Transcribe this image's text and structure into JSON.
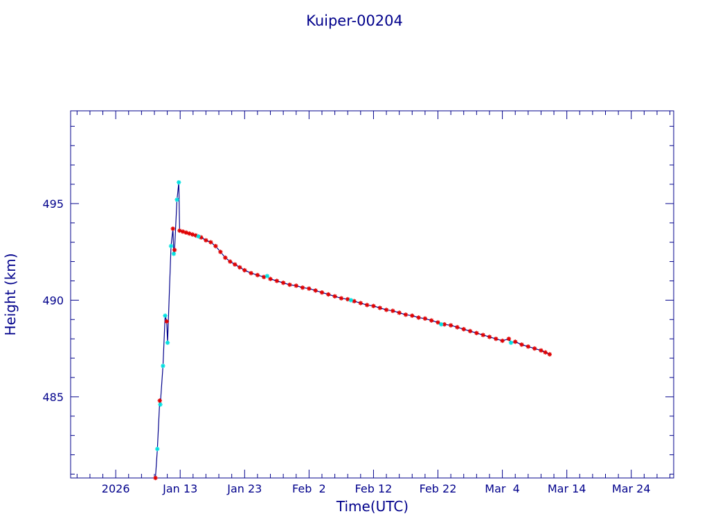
{
  "chart_data": {
    "type": "scatter",
    "title": "Kuiper-00204",
    "xlabel": "Time(UTC)",
    "ylabel": "Height (km)",
    "x_ticks": [
      {
        "date": "2026-01-03",
        "label": "2026"
      },
      {
        "date": "2026-01-13",
        "label": "Jan 13"
      },
      {
        "date": "2026-01-23",
        "label": "Jan 23"
      },
      {
        "date": "2026-02-02",
        "label": "Feb  2"
      },
      {
        "date": "2026-02-12",
        "label": "Feb 12"
      },
      {
        "date": "2026-02-22",
        "label": "Feb 22"
      },
      {
        "date": "2026-03-04",
        "label": "Mar  4"
      },
      {
        "date": "2026-03-14",
        "label": "Mar 14"
      },
      {
        "date": "2026-03-24",
        "label": "Mar 24"
      }
    ],
    "xlim": [
      "2025-12-27T00:00",
      "2026-03-30T14:00"
    ],
    "ylim": [
      480.8,
      499.8
    ],
    "y_ticks": [
      485,
      490,
      495
    ],
    "grid": false,
    "line_color": "#00008b",
    "series": [
      {
        "color": "#e00000",
        "marker": "asterisk",
        "points": [
          [
            "2026-01-09T04:00",
            480.8
          ],
          [
            "2026-01-09T20:00",
            484.8
          ],
          [
            "2026-01-10T22:00",
            488.9
          ],
          [
            "2026-01-11T21:00",
            493.7
          ],
          [
            "2026-01-12T03:00",
            492.6
          ],
          [
            "2026-01-12T22:00",
            493.6
          ],
          [
            "2026-01-13T10:00",
            493.55
          ],
          [
            "2026-01-13T22:00",
            493.5
          ],
          [
            "2026-01-14T10:00",
            493.45
          ],
          [
            "2026-01-14T22:00",
            493.4
          ],
          [
            "2026-01-15T10:00",
            493.35
          ],
          [
            "2026-01-16T06:00",
            493.25
          ],
          [
            "2026-01-17T00:00",
            493.1
          ],
          [
            "2026-01-17T18:00",
            493.0
          ],
          [
            "2026-01-18T12:00",
            492.8
          ],
          [
            "2026-01-19T06:00",
            492.5
          ],
          [
            "2026-01-20T00:00",
            492.2
          ],
          [
            "2026-01-20T18:00",
            492.0
          ],
          [
            "2026-01-21T12:00",
            491.85
          ],
          [
            "2026-01-22T06:00",
            491.7
          ],
          [
            "2026-01-23T00:00",
            491.55
          ],
          [
            "2026-01-24T00:00",
            491.4
          ],
          [
            "2026-01-25T00:00",
            491.3
          ],
          [
            "2026-01-26T00:00",
            491.2
          ],
          [
            "2026-01-27T00:00",
            491.1
          ],
          [
            "2026-01-28T00:00",
            491.0
          ],
          [
            "2026-01-29T00:00",
            490.9
          ],
          [
            "2026-01-30T00:00",
            490.8
          ],
          [
            "2026-01-31T00:00",
            490.75
          ],
          [
            "2026-02-01T00:00",
            490.65
          ],
          [
            "2026-02-02T00:00",
            490.6
          ],
          [
            "2026-02-03T00:00",
            490.5
          ],
          [
            "2026-02-04T00:00",
            490.4
          ],
          [
            "2026-02-05T00:00",
            490.3
          ],
          [
            "2026-02-06T00:00",
            490.2
          ],
          [
            "2026-02-07T00:00",
            490.1
          ],
          [
            "2026-02-08T00:00",
            490.05
          ],
          [
            "2026-02-09T00:00",
            489.95
          ],
          [
            "2026-02-10T00:00",
            489.85
          ],
          [
            "2026-02-11T00:00",
            489.75
          ],
          [
            "2026-02-12T00:00",
            489.7
          ],
          [
            "2026-02-13T00:00",
            489.6
          ],
          [
            "2026-02-14T00:00",
            489.5
          ],
          [
            "2026-02-15T00:00",
            489.45
          ],
          [
            "2026-02-16T00:00",
            489.35
          ],
          [
            "2026-02-17T00:00",
            489.25
          ],
          [
            "2026-02-18T00:00",
            489.2
          ],
          [
            "2026-02-19T00:00",
            489.1
          ],
          [
            "2026-02-20T00:00",
            489.05
          ],
          [
            "2026-02-21T00:00",
            488.95
          ],
          [
            "2026-02-22T00:00",
            488.85
          ],
          [
            "2026-02-23T00:00",
            488.75
          ],
          [
            "2026-02-24T00:00",
            488.7
          ],
          [
            "2026-02-25T00:00",
            488.6
          ],
          [
            "2026-02-26T00:00",
            488.5
          ],
          [
            "2026-02-27T00:00",
            488.4
          ],
          [
            "2026-02-28T00:00",
            488.3
          ],
          [
            "2026-03-01T00:00",
            488.2
          ],
          [
            "2026-03-02T00:00",
            488.1
          ],
          [
            "2026-03-03T00:00",
            488.0
          ],
          [
            "2026-03-04T00:00",
            487.9
          ],
          [
            "2026-03-05T00:00",
            488.0
          ],
          [
            "2026-03-06T00:00",
            487.85
          ],
          [
            "2026-03-07T00:00",
            487.7
          ],
          [
            "2026-03-08T00:00",
            487.6
          ],
          [
            "2026-03-09T00:00",
            487.5
          ],
          [
            "2026-03-10T00:00",
            487.4
          ],
          [
            "2026-03-10T16:00",
            487.3
          ],
          [
            "2026-03-11T08:00",
            487.2
          ]
        ]
      },
      {
        "color": "#00e0e0",
        "marker": "asterisk",
        "points": [
          [
            "2026-01-09T11:00",
            482.3
          ],
          [
            "2026-01-09T22:00",
            484.6
          ],
          [
            "2026-01-10T08:00",
            486.6
          ],
          [
            "2026-01-10T16:00",
            489.2
          ],
          [
            "2026-01-11T01:00",
            487.8
          ],
          [
            "2026-01-11T14:00",
            492.8
          ],
          [
            "2026-01-12T00:00",
            492.4
          ],
          [
            "2026-01-12T12:00",
            495.2
          ],
          [
            "2026-01-12T19:00",
            496.1
          ],
          [
            "2026-01-15T20:00",
            493.3
          ],
          [
            "2026-01-26T12:00",
            491.25
          ],
          [
            "2026-02-08T12:00",
            490.0
          ],
          [
            "2026-02-22T12:00",
            488.75
          ],
          [
            "2026-03-05T08:00",
            487.8
          ]
        ]
      }
    ]
  }
}
